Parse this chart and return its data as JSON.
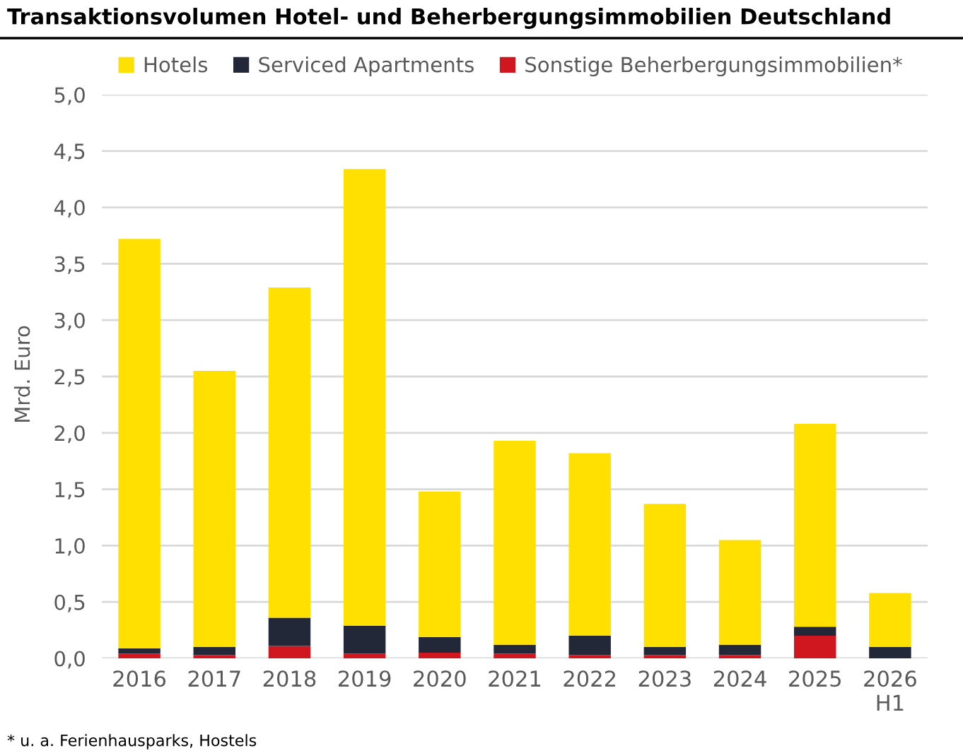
{
  "chart_data": {
    "type": "bar",
    "title": "Transaktionsvolumen Hotel- und Beherbergungsimmobilien Deutschland",
    "ylabel": "Mrd. Euro",
    "categories": [
      "2016",
      "2017",
      "2018",
      "2019",
      "2020",
      "2021",
      "2022",
      "2023",
      "2024",
      "2025",
      "2026\nH1"
    ],
    "stacked": true,
    "series": [
      {
        "name": "Sonstige Beherbergungsimmobilien*",
        "color": "#d0161e",
        "values": [
          0.04,
          0.03,
          0.11,
          0.04,
          0.05,
          0.04,
          0.03,
          0.03,
          0.03,
          0.2,
          0
        ]
      },
      {
        "name": "Serviced Apartments",
        "color": "#232838",
        "values": [
          0.05,
          0.07,
          0.25,
          0.25,
          0.14,
          0.08,
          0.17,
          0.07,
          0.09,
          0.08,
          0.1
        ]
      },
      {
        "name": "Hotels",
        "color": "#ffe000",
        "values": [
          3.63,
          2.45,
          2.93,
          4.05,
          1.29,
          1.81,
          1.62,
          1.27,
          0.93,
          1.8,
          0.48
        ]
      }
    ],
    "ylim": [
      0,
      5.0
    ],
    "yticks": [
      {
        "value": 0,
        "label": "0,0"
      },
      {
        "value": 0.5,
        "label": "0,5"
      },
      {
        "value": 1.0,
        "label": "1,0"
      },
      {
        "value": 1.5,
        "label": "1,5"
      },
      {
        "value": 2.0,
        "label": "2,0"
      },
      {
        "value": 2.5,
        "label": "2,5"
      },
      {
        "value": 3.0,
        "label": "3,0"
      },
      {
        "value": 3.5,
        "label": "3,5"
      },
      {
        "value": 4.0,
        "label": "4,0"
      },
      {
        "value": 4.5,
        "label": "4,5"
      },
      {
        "value": 5.0,
        "label": "5,0"
      }
    ],
    "grid": "y",
    "legend": "top",
    "annotations": [
      "* u. a. Ferienhausparks, Hostels"
    ]
  }
}
